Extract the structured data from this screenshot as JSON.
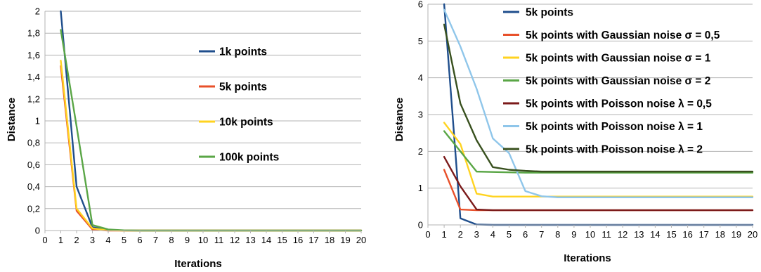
{
  "chart_data": [
    {
      "type": "line",
      "title": "",
      "xlabel": "Iterations",
      "ylabel": "Distance",
      "xlim": [
        0,
        20
      ],
      "ylim": [
        0,
        2
      ],
      "grid": "horizontal",
      "legend_position": "right",
      "x_tick_labels": [
        "0",
        "1",
        "2",
        "3",
        "4",
        "5",
        "6",
        "7",
        "8",
        "9",
        "10",
        "11",
        "12",
        "13",
        "14",
        "15",
        "16",
        "17",
        "18",
        "19",
        "20"
      ],
      "y_tick_labels": [
        "0",
        "0,2",
        "0,4",
        "0,6",
        "0,8",
        "1",
        "1,2",
        "1,4",
        "1,6",
        "1,8",
        "2"
      ],
      "y_tick_values": [
        0,
        0.2,
        0.4,
        0.6,
        0.8,
        1,
        1.2,
        1.4,
        1.6,
        1.8,
        2
      ],
      "x": [
        1,
        2,
        3,
        4,
        5,
        6,
        7,
        8,
        9,
        10,
        11,
        12,
        13,
        14,
        15,
        16,
        17,
        18,
        19,
        20
      ],
      "series": [
        {
          "name": "1k points",
          "color": "#1f4e8c",
          "values": [
            2.0,
            0.4,
            0.03,
            0.005,
            0,
            0,
            0,
            0,
            0,
            0,
            0,
            0,
            0,
            0,
            0,
            0,
            0,
            0,
            0,
            0
          ]
        },
        {
          "name": "5k points",
          "color": "#e8502a",
          "values": [
            1.5,
            0.18,
            0.01,
            0,
            0,
            0,
            0,
            0,
            0,
            0,
            0,
            0,
            0,
            0,
            0,
            0,
            0,
            0,
            0,
            0
          ]
        },
        {
          "name": "10k points",
          "color": "#ffd320",
          "values": [
            1.55,
            0.2,
            0.02,
            0.002,
            0,
            0,
            0,
            0,
            0,
            0,
            0,
            0,
            0,
            0,
            0,
            0,
            0,
            0,
            0,
            0
          ]
        },
        {
          "name": "100k points",
          "color": "#5aa646",
          "values": [
            1.83,
            0.95,
            0.05,
            0.01,
            0.002,
            0,
            0,
            0,
            0,
            0,
            0,
            0,
            0,
            0,
            0,
            0,
            0,
            0,
            0,
            0
          ]
        }
      ]
    },
    {
      "type": "line",
      "title": "",
      "xlabel": "Iterations",
      "ylabel": "Distance",
      "xlim": [
        0,
        20
      ],
      "ylim": [
        0,
        6
      ],
      "grid": "horizontal",
      "legend_position": "top-right",
      "x_tick_labels": [
        "0",
        "1",
        "2",
        "3",
        "4",
        "5",
        "6",
        "7",
        "8",
        "9",
        "10",
        "11",
        "12",
        "13",
        "14",
        "15",
        "16",
        "17",
        "18",
        "19",
        "20"
      ],
      "y_tick_labels": [
        "0",
        "1",
        "2",
        "3",
        "4",
        "5",
        "6"
      ],
      "y_tick_values": [
        0,
        1,
        2,
        3,
        4,
        5,
        6
      ],
      "x": [
        1,
        2,
        3,
        4,
        5,
        6,
        7,
        8,
        9,
        10,
        11,
        12,
        13,
        14,
        15,
        16,
        17,
        18,
        19,
        20
      ],
      "series": [
        {
          "name": "5k points",
          "color": "#1f4e8c",
          "values": [
            6.0,
            0.18,
            0.01,
            0,
            0,
            0,
            0,
            0,
            0,
            0,
            0,
            0,
            0,
            0,
            0,
            0,
            0,
            0,
            0,
            0
          ]
        },
        {
          "name": "5k points with Gaussian noise σ = 0,5",
          "color": "#e8502a",
          "values": [
            1.5,
            0.42,
            0.4,
            0.4,
            0.4,
            0.4,
            0.4,
            0.4,
            0.4,
            0.4,
            0.4,
            0.4,
            0.4,
            0.4,
            0.4,
            0.4,
            0.4,
            0.4,
            0.4,
            0.4
          ]
        },
        {
          "name": "5k points with Gaussian noise σ = 1",
          "color": "#ffd320",
          "values": [
            2.78,
            2.2,
            0.85,
            0.77,
            0.77,
            0.77,
            0.77,
            0.77,
            0.77,
            0.77,
            0.77,
            0.77,
            0.77,
            0.77,
            0.77,
            0.77,
            0.77,
            0.77,
            0.77,
            0.77
          ]
        },
        {
          "name": "5k points with Gaussian noise σ = 2",
          "color": "#5aa646",
          "values": [
            2.55,
            2.0,
            1.45,
            1.44,
            1.43,
            1.42,
            1.42,
            1.42,
            1.42,
            1.42,
            1.42,
            1.42,
            1.42,
            1.42,
            1.42,
            1.42,
            1.42,
            1.42,
            1.42,
            1.42
          ]
        },
        {
          "name": "5k points with Poisson noise λ = 0,5",
          "color": "#7b1a1a",
          "values": [
            1.85,
            1.05,
            0.42,
            0.4,
            0.4,
            0.4,
            0.4,
            0.4,
            0.4,
            0.4,
            0.4,
            0.4,
            0.4,
            0.4,
            0.4,
            0.4,
            0.4,
            0.4,
            0.4,
            0.4
          ]
        },
        {
          "name": "5k points with Poisson noise λ = 1",
          "color": "#8fc6ea",
          "values": [
            5.85,
            4.85,
            3.7,
            2.35,
            1.95,
            0.92,
            0.78,
            0.75,
            0.75,
            0.75,
            0.75,
            0.75,
            0.75,
            0.75,
            0.75,
            0.75,
            0.75,
            0.75,
            0.75,
            0.75
          ]
        },
        {
          "name": "5k points with Poisson noise λ = 2",
          "color": "#38501e",
          "values": [
            5.45,
            3.3,
            2.3,
            1.57,
            1.5,
            1.47,
            1.45,
            1.45,
            1.45,
            1.45,
            1.45,
            1.45,
            1.45,
            1.45,
            1.45,
            1.45,
            1.45,
            1.45,
            1.45,
            1.45
          ]
        }
      ]
    }
  ]
}
